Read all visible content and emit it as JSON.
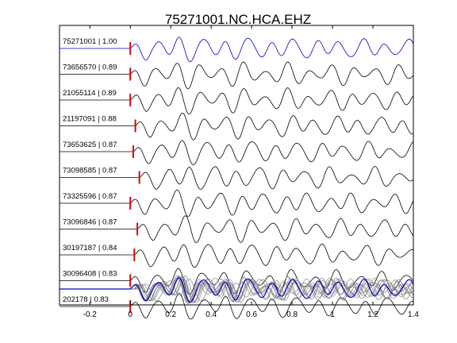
{
  "chart_data": {
    "type": "line",
    "title": "75271001.NC.HCA.EHZ",
    "xlabel": "",
    "ylabel": "",
    "xlim": [
      -0.35,
      1.4
    ],
    "x_ticks": [
      -0.2,
      0,
      0.2,
      0.4,
      0.6,
      0.8,
      1,
      1.2,
      1.4
    ],
    "x_tick_labels": [
      "-0.2",
      "0",
      "0.2",
      "0.4",
      "0.6",
      "0.8",
      "1",
      "1.2",
      "1.4"
    ],
    "grid": false,
    "pick_color": "#e00000",
    "reference_color": "#0000cc",
    "trace_color": "#000000",
    "stack_color": "#808080",
    "series": [
      {
        "name": "75271001 | 1.00",
        "pick_time": 0.0,
        "color": "#0000cc"
      },
      {
        "name": "73656570 | 0.89",
        "pick_time": 0.0,
        "color": "#000000"
      },
      {
        "name": "21055114 | 0.89",
        "pick_time": 0.0,
        "color": "#000000"
      },
      {
        "name": "21197091 | 0.88",
        "pick_time": 0.025,
        "color": "#000000"
      },
      {
        "name": "73653625 | 0.87",
        "pick_time": 0.015,
        "color": "#000000"
      },
      {
        "name": "73098585 | 0.87",
        "pick_time": 0.045,
        "color": "#000000"
      },
      {
        "name": "73325596 | 0.87",
        "pick_time": 0.0,
        "color": "#000000"
      },
      {
        "name": "73096846 | 0.87",
        "pick_time": 0.035,
        "color": "#000000"
      },
      {
        "name": "30197187 | 0.84",
        "pick_time": 0.02,
        "color": "#000000"
      },
      {
        "name": "30096408 | 0.83",
        "pick_time": 0.0,
        "color": "#000000"
      },
      {
        "name": "202178 | 0.83",
        "pick_time": 0.0,
        "color": "#000000"
      }
    ],
    "stack": {
      "description_visible": false
    }
  }
}
